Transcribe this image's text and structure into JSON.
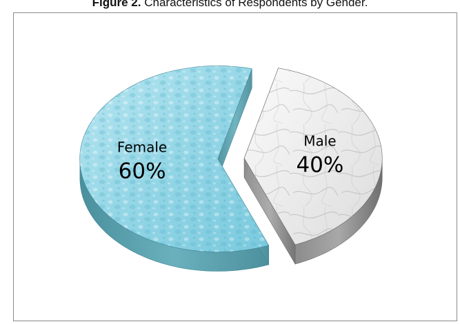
{
  "caption": {
    "prefix": "Figure 2.",
    "text": " Characteristics of Respondents by Gender."
  },
  "chart_data": {
    "type": "pie",
    "title": "",
    "style": "3d-exploded",
    "slices": [
      {
        "label": "Female",
        "value": 60,
        "display": "60%",
        "color": "#8fd6e6",
        "texture": "water-drops"
      },
      {
        "label": "Male",
        "value": 40,
        "display": "40%",
        "color": "#e8e8e8",
        "texture": "marble"
      }
    ]
  }
}
